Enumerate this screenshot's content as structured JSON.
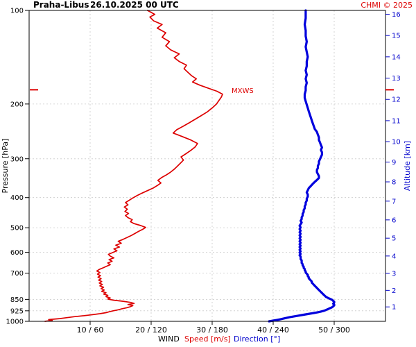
{
  "header": {
    "station": "Praha-Libus",
    "datetime": "26.10.2025 00 UTC",
    "copyright": "CHMI © 2025"
  },
  "colors": {
    "speed": "#dd0000",
    "direction": "#0000dd",
    "altitude_axis": "#0000cc",
    "grid": "#c9c9c9",
    "frame": "#000000",
    "text": "#000000"
  },
  "chart_data": {
    "type": "line",
    "title": "Wind profile Praha-Libus 26.10.2025 00 UTC",
    "grid": true,
    "y_axis": {
      "label": "Pressure [hPa]",
      "scale": "log",
      "range": [
        100,
        1000
      ],
      "ticks": [
        100,
        200,
        300,
        400,
        500,
        600,
        700,
        850,
        925,
        1000
      ]
    },
    "y2_axis": {
      "label": "Altitude [km]",
      "ticks_km": [
        1,
        2,
        3,
        4,
        5,
        6,
        7,
        8,
        9,
        10,
        11,
        12,
        13,
        14,
        15,
        16
      ]
    },
    "x_axis": {
      "label_wind": "WIND",
      "label_speed": "Speed [m/s]",
      "label_direction": "Direction [°]",
      "tick_labels": [
        "10 / 60",
        "20 / 120",
        "30 / 180",
        "40 / 240",
        "50 / 300"
      ],
      "speed_ticks": [
        10,
        20,
        30,
        40,
        50
      ],
      "direction_ticks": [
        60,
        120,
        180,
        240,
        300
      ],
      "speed_range": [
        0,
        58.4
      ],
      "direction_range": [
        0,
        350
      ]
    },
    "annotations": [
      {
        "label": "MXWS",
        "pressure": 180,
        "speed": 31.7
      }
    ],
    "series": [
      {
        "name": "Wind speed [m/s]",
        "axis": "speed",
        "color_key": "speed",
        "points": [
          [
            1000,
            2.6
          ],
          [
            993,
            3.8
          ],
          [
            987,
            3.2
          ],
          [
            980,
            5.0
          ],
          [
            973,
            6.2
          ],
          [
            966,
            7.4
          ],
          [
            959,
            9.0
          ],
          [
            952,
            10.4
          ],
          [
            945,
            11.6
          ],
          [
            938,
            12.6
          ],
          [
            931,
            13.2
          ],
          [
            925,
            13.8
          ],
          [
            918,
            14.6
          ],
          [
            911,
            15.2
          ],
          [
            904,
            16.0
          ],
          [
            897,
            16.6
          ],
          [
            890,
            17.0
          ],
          [
            883,
            16.2
          ],
          [
            876,
            17.2
          ],
          [
            869,
            16.6
          ],
          [
            862,
            15.4
          ],
          [
            855,
            13.8
          ],
          [
            848,
            12.9
          ],
          [
            841,
            13.3
          ],
          [
            833,
            12.6
          ],
          [
            825,
            12.9
          ],
          [
            817,
            12.2
          ],
          [
            809,
            12.6
          ],
          [
            801,
            11.9
          ],
          [
            793,
            12.3
          ],
          [
            785,
            11.8
          ],
          [
            777,
            12.2
          ],
          [
            769,
            11.6
          ],
          [
            761,
            12.0
          ],
          [
            753,
            11.5
          ],
          [
            745,
            11.9
          ],
          [
            737,
            11.4
          ],
          [
            729,
            11.8
          ],
          [
            721,
            11.3
          ],
          [
            713,
            11.7
          ],
          [
            705,
            11.2
          ],
          [
            697,
            11.6
          ],
          [
            689,
            11.1
          ],
          [
            681,
            11.5
          ],
          [
            673,
            12.1
          ],
          [
            665,
            12.7
          ],
          [
            657,
            13.3
          ],
          [
            649,
            12.9
          ],
          [
            641,
            13.6
          ],
          [
            633,
            13.1
          ],
          [
            625,
            13.9
          ],
          [
            617,
            13.3
          ],
          [
            609,
            13.0
          ],
          [
            601,
            13.7
          ],
          [
            593,
            14.4
          ],
          [
            585,
            13.9
          ],
          [
            577,
            14.8
          ],
          [
            569,
            14.2
          ],
          [
            561,
            15.1
          ],
          [
            553,
            14.6
          ],
          [
            545,
            15.4
          ],
          [
            537,
            16.1
          ],
          [
            529,
            16.8
          ],
          [
            521,
            17.4
          ],
          [
            513,
            18.0
          ],
          [
            506,
            18.6
          ],
          [
            499,
            19.1
          ],
          [
            492,
            18.3
          ],
          [
            485,
            17.2
          ],
          [
            478,
            16.6
          ],
          [
            471,
            16.9
          ],
          [
            464,
            16.2
          ],
          [
            457,
            15.8
          ],
          [
            450,
            16.3
          ],
          [
            443,
            15.7
          ],
          [
            436,
            16.1
          ],
          [
            429,
            15.6
          ],
          [
            422,
            16.2
          ],
          [
            415,
            15.8
          ],
          [
            408,
            16.4
          ],
          [
            401,
            17.0
          ],
          [
            394,
            17.7
          ],
          [
            387,
            18.5
          ],
          [
            380,
            19.4
          ],
          [
            373,
            20.3
          ],
          [
            366,
            21.0
          ],
          [
            359,
            21.6
          ],
          [
            352,
            21.1
          ],
          [
            345,
            21.7
          ],
          [
            338,
            22.5
          ],
          [
            331,
            23.2
          ],
          [
            324,
            23.8
          ],
          [
            317,
            24.3
          ],
          [
            310,
            24.8
          ],
          [
            303,
            25.3
          ],
          [
            296,
            24.9
          ],
          [
            289,
            25.7
          ],
          [
            282,
            26.5
          ],
          [
            275,
            27.2
          ],
          [
            268,
            27.6
          ],
          [
            261,
            26.5
          ],
          [
            254,
            25.0
          ],
          [
            248,
            23.6
          ],
          [
            242,
            24.2
          ],
          [
            236,
            25.2
          ],
          [
            230,
            26.2
          ],
          [
            224,
            27.2
          ],
          [
            218,
            28.2
          ],
          [
            212,
            29.2
          ],
          [
            206,
            30.0
          ],
          [
            200,
            30.7
          ],
          [
            195,
            31.1
          ],
          [
            190,
            31.5
          ],
          [
            186,
            31.7
          ],
          [
            182,
            30.8
          ],
          [
            178,
            29.4
          ],
          [
            174,
            28.0
          ],
          [
            170,
            26.8
          ],
          [
            166,
            27.4
          ],
          [
            162,
            26.6
          ],
          [
            158,
            26.0
          ],
          [
            154,
            25.4
          ],
          [
            150,
            25.8
          ],
          [
            146,
            24.6
          ],
          [
            142,
            23.8
          ],
          [
            138,
            24.6
          ],
          [
            134,
            23.2
          ],
          [
            130,
            22.4
          ],
          [
            126,
            23.0
          ],
          [
            122,
            21.8
          ],
          [
            118,
            22.4
          ],
          [
            114,
            21.0
          ],
          [
            111,
            21.8
          ],
          [
            108,
            20.4
          ],
          [
            105,
            19.8
          ],
          [
            103,
            20.6
          ],
          [
            101,
            19.8
          ],
          [
            100,
            19.4
          ]
        ]
      },
      {
        "name": "Wind direction [°]",
        "axis": "direction",
        "color_key": "direction",
        "points": [
          [
            1000,
            236
          ],
          [
            995,
            240
          ],
          [
            990,
            244
          ],
          [
            985,
            247
          ],
          [
            980,
            250
          ],
          [
            975,
            253
          ],
          [
            970,
            256
          ],
          [
            965,
            260
          ],
          [
            960,
            264
          ],
          [
            955,
            268
          ],
          [
            950,
            272
          ],
          [
            945,
            276
          ],
          [
            940,
            280
          ],
          [
            935,
            284
          ],
          [
            930,
            287
          ],
          [
            925,
            290
          ],
          [
            919,
            292
          ],
          [
            913,
            294
          ],
          [
            907,
            296
          ],
          [
            901,
            298
          ],
          [
            895,
            299
          ],
          [
            889,
            300
          ],
          [
            883,
            300
          ],
          [
            877,
            299
          ],
          [
            871,
            300
          ],
          [
            865,
            300
          ],
          [
            859,
            299
          ],
          [
            853,
            298
          ],
          [
            847,
            296
          ],
          [
            841,
            294
          ],
          [
            835,
            292
          ],
          [
            829,
            291
          ],
          [
            823,
            290
          ],
          [
            817,
            289
          ],
          [
            811,
            288
          ],
          [
            805,
            287
          ],
          [
            799,
            286
          ],
          [
            793,
            285
          ],
          [
            787,
            284
          ],
          [
            781,
            283
          ],
          [
            775,
            282
          ],
          [
            769,
            281
          ],
          [
            763,
            280
          ],
          [
            757,
            279
          ],
          [
            751,
            278
          ],
          [
            745,
            278
          ],
          [
            739,
            277
          ],
          [
            733,
            276
          ],
          [
            727,
            275
          ],
          [
            721,
            275
          ],
          [
            715,
            274
          ],
          [
            709,
            274
          ],
          [
            703,
            273
          ],
          [
            697,
            272
          ],
          [
            691,
            272
          ],
          [
            685,
            271
          ],
          [
            679,
            271
          ],
          [
            673,
            270
          ],
          [
            667,
            270
          ],
          [
            661,
            269
          ],
          [
            655,
            269
          ],
          [
            649,
            268
          ],
          [
            643,
            268
          ],
          [
            637,
            268
          ],
          [
            631,
            267
          ],
          [
            625,
            267
          ],
          [
            619,
            267
          ],
          [
            613,
            266
          ],
          [
            607,
            267
          ],
          [
            601,
            266
          ],
          [
            595,
            267
          ],
          [
            589,
            266
          ],
          [
            583,
            267
          ],
          [
            577,
            266
          ],
          [
            571,
            267
          ],
          [
            565,
            266
          ],
          [
            559,
            267
          ],
          [
            553,
            266
          ],
          [
            547,
            267
          ],
          [
            541,
            266
          ],
          [
            535,
            267
          ],
          [
            529,
            266
          ],
          [
            523,
            267
          ],
          [
            517,
            266
          ],
          [
            511,
            267
          ],
          [
            505,
            266
          ],
          [
            499,
            267
          ],
          [
            493,
            266
          ],
          [
            487,
            267
          ],
          [
            481,
            268
          ],
          [
            475,
            267
          ],
          [
            469,
            268
          ],
          [
            463,
            268
          ],
          [
            457,
            269
          ],
          [
            451,
            269
          ],
          [
            445,
            270
          ],
          [
            439,
            270
          ],
          [
            433,
            271
          ],
          [
            427,
            271
          ],
          [
            421,
            272
          ],
          [
            415,
            272
          ],
          [
            409,
            273
          ],
          [
            403,
            273
          ],
          [
            397,
            274
          ],
          [
            391,
            274
          ],
          [
            385,
            273
          ],
          [
            379,
            274
          ],
          [
            373,
            275
          ],
          [
            367,
            277
          ],
          [
            361,
            279
          ],
          [
            356,
            281
          ],
          [
            351,
            283
          ],
          [
            346,
            285
          ],
          [
            341,
            285
          ],
          [
            336,
            284
          ],
          [
            331,
            283
          ],
          [
            326,
            283
          ],
          [
            321,
            284
          ],
          [
            316,
            284
          ],
          [
            311,
            285
          ],
          [
            306,
            285
          ],
          [
            301,
            286
          ],
          [
            296,
            287
          ],
          [
            291,
            288
          ],
          [
            286,
            288
          ],
          [
            281,
            287
          ],
          [
            276,
            288
          ],
          [
            271,
            287
          ],
          [
            266,
            286
          ],
          [
            261,
            285
          ],
          [
            256,
            285
          ],
          [
            251,
            284
          ],
          [
            246,
            283
          ],
          [
            241,
            281
          ],
          [
            236,
            280
          ],
          [
            231,
            279
          ],
          [
            226,
            278
          ],
          [
            221,
            277
          ],
          [
            216,
            276
          ],
          [
            211,
            275
          ],
          [
            206,
            274
          ],
          [
            201,
            273
          ],
          [
            196,
            272
          ],
          [
            191,
            271
          ],
          [
            186,
            271
          ],
          [
            181,
            272
          ],
          [
            176,
            272
          ],
          [
            171,
            273
          ],
          [
            166,
            272
          ],
          [
            161,
            273
          ],
          [
            156,
            272
          ],
          [
            151,
            273
          ],
          [
            146,
            273
          ],
          [
            141,
            274
          ],
          [
            136,
            273
          ],
          [
            131,
            272
          ],
          [
            126,
            273
          ],
          [
            121,
            272
          ],
          [
            116,
            272
          ],
          [
            111,
            271
          ],
          [
            106,
            272
          ],
          [
            102,
            272
          ],
          [
            100,
            272
          ]
        ]
      }
    ]
  }
}
